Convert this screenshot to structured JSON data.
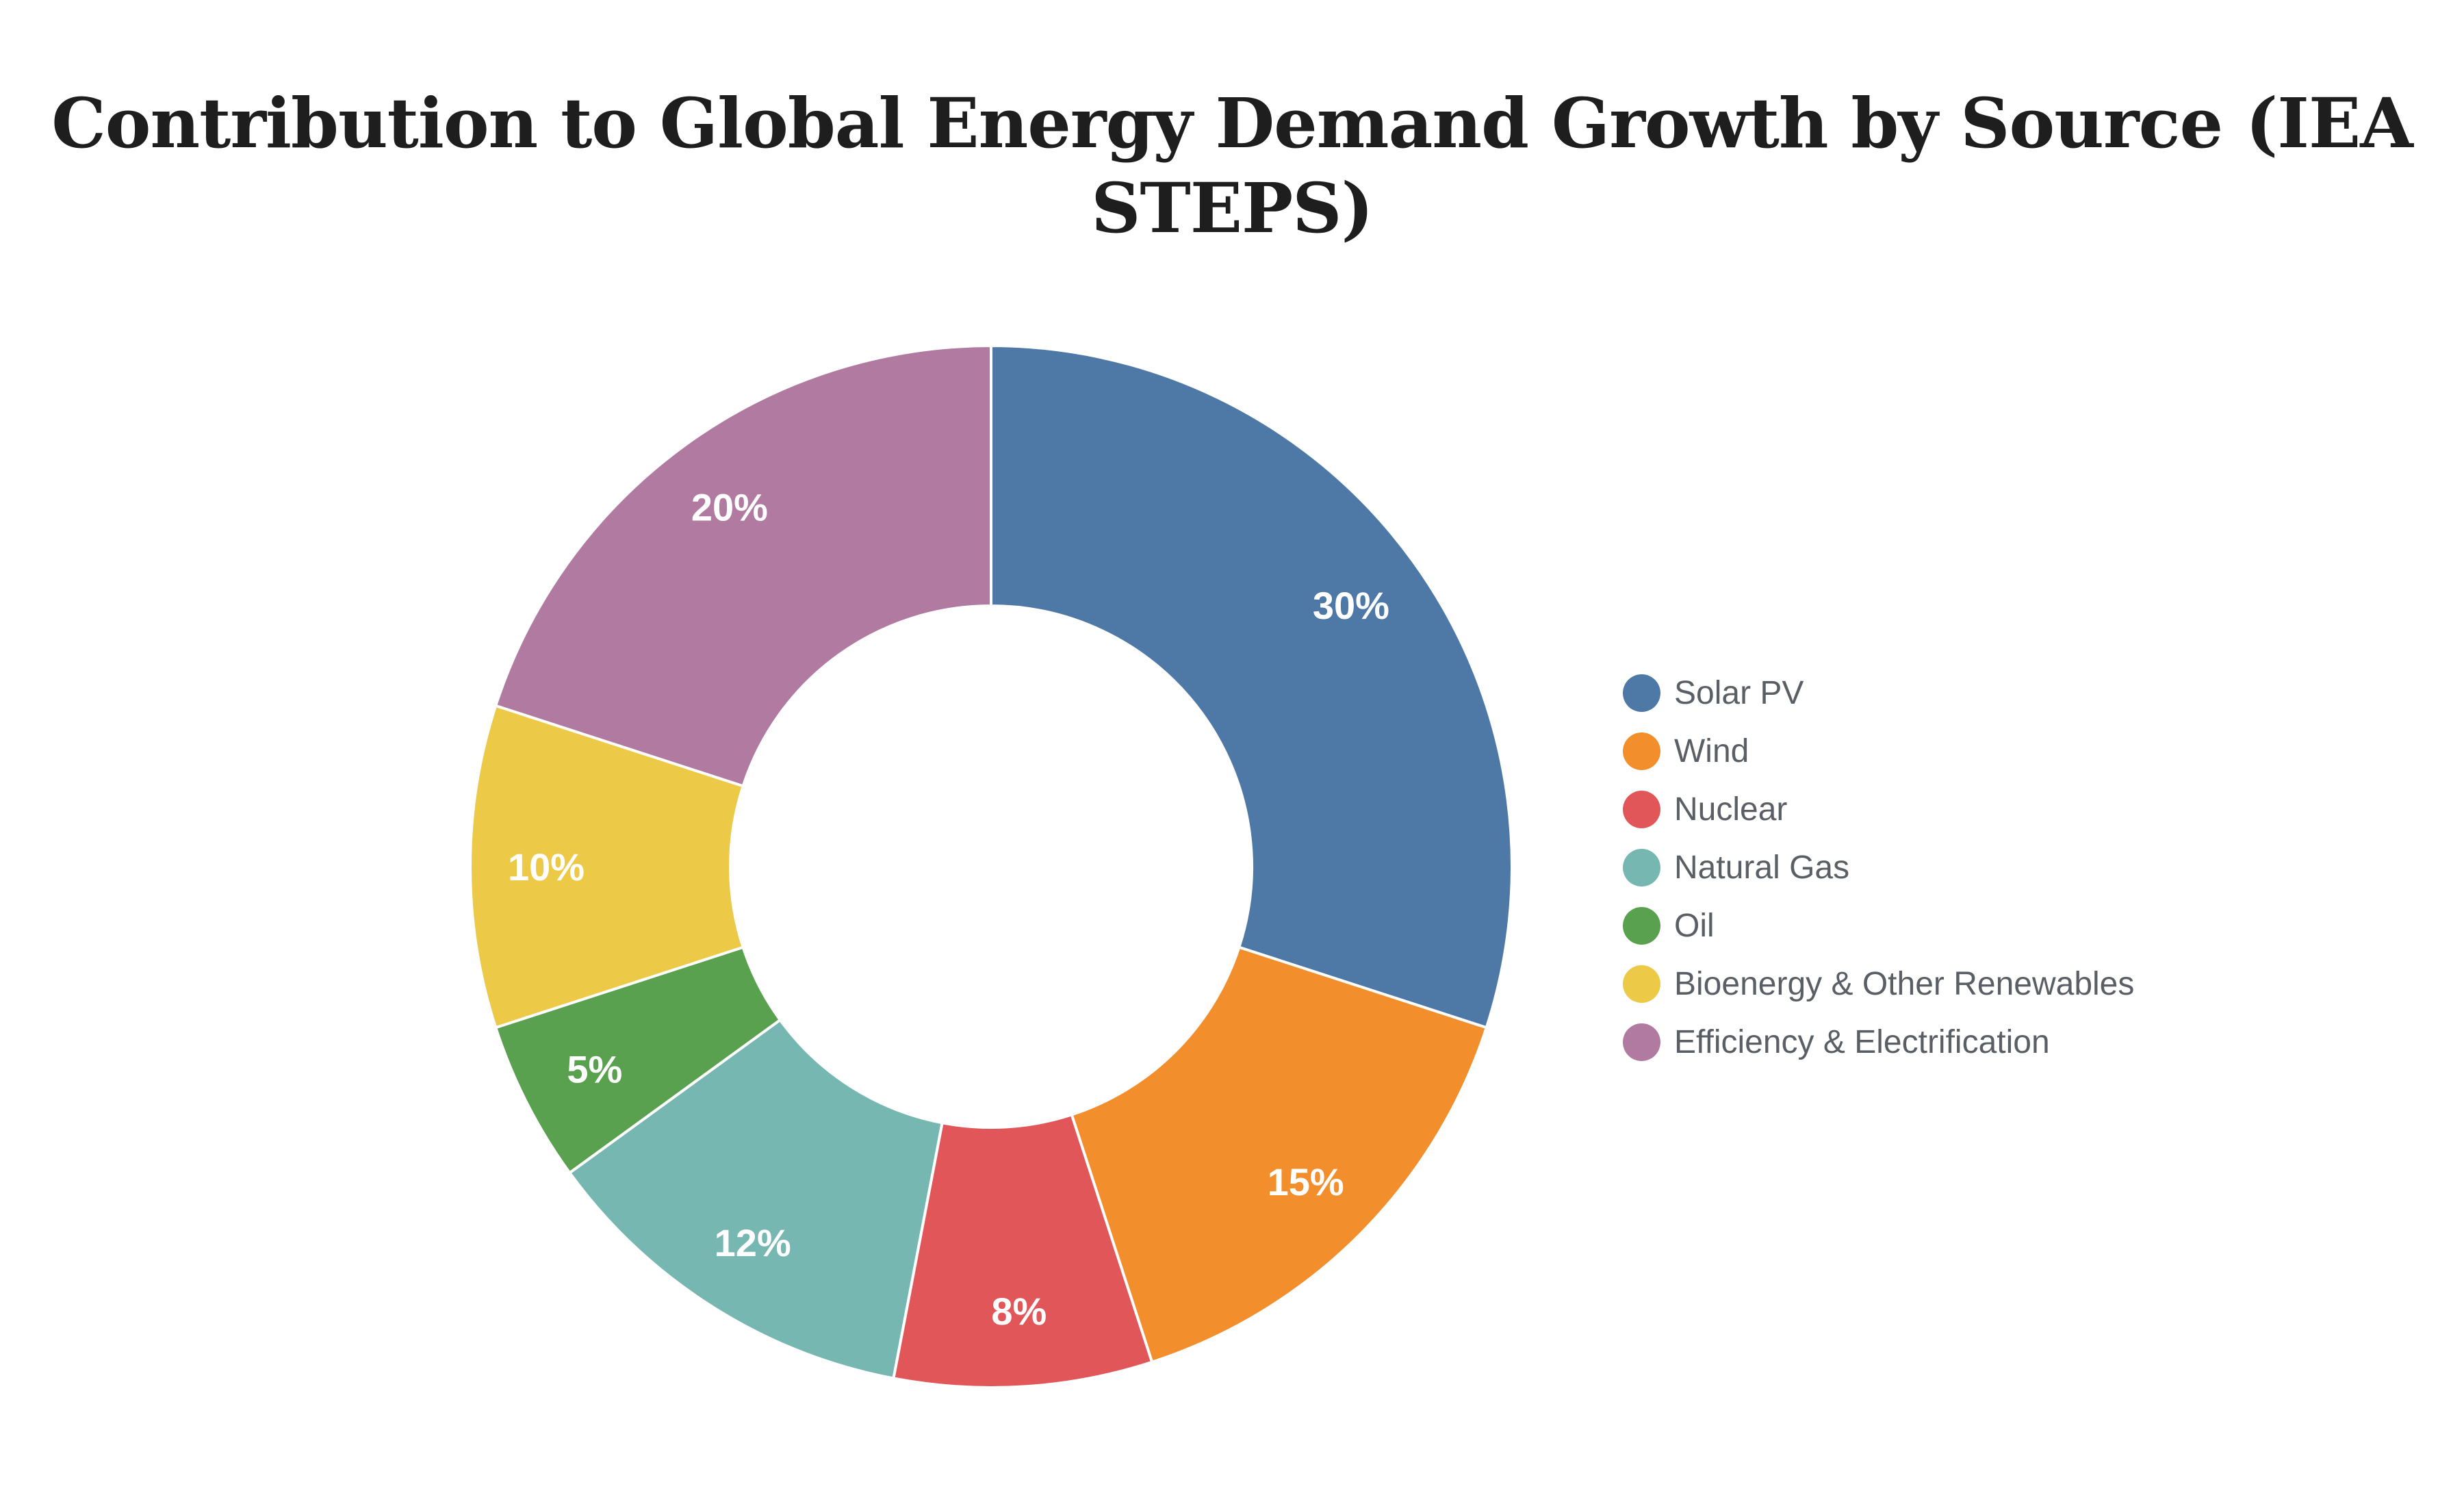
{
  "title": {
    "text": "Contribution to Global Energy Demand Growth by Source (IEA STEPS)",
    "lines": [
      "Contribution to Global Energy Demand Growth by Source (IEA",
      "STEPS)"
    ]
  },
  "chart_data": {
    "type": "pie",
    "variant": "donut",
    "hole_ratio": 0.5,
    "title": "Contribution to Global Energy Demand Growth by Source (IEA STEPS)",
    "categories": [
      "Solar PV",
      "Wind",
      "Nuclear",
      "Natural Gas",
      "Oil",
      "Bioenergy & Other Renewables",
      "Efficiency & Electrification"
    ],
    "values": [
      30,
      15,
      8,
      12,
      5,
      10,
      20
    ],
    "slice_labels": [
      "30%",
      "15%",
      "8%",
      "12%",
      "5%",
      "10%",
      "20%"
    ],
    "colors": [
      "#4E79A7",
      "#F28E2B",
      "#E15759",
      "#76B7B2",
      "#59A14F",
      "#EDC948",
      "#B07AA1"
    ],
    "start_angle_deg": 0,
    "direction": "clockwise",
    "slice_label_position": "inside",
    "slice_label_color": "#FFFFFF",
    "slice_border_color": "#FFFFFF",
    "legend_position": "right",
    "background_color": "#FFFFFF"
  },
  "legend": {
    "items": [
      {
        "label": "Solar PV",
        "color": "#4E79A7"
      },
      {
        "label": "Wind",
        "color": "#F28E2B"
      },
      {
        "label": "Nuclear",
        "color": "#E15759"
      },
      {
        "label": "Natural Gas",
        "color": "#76B7B2"
      },
      {
        "label": "Oil",
        "color": "#59A14F"
      },
      {
        "label": "Bioenergy & Other Renewables",
        "color": "#EDC948"
      },
      {
        "label": "Efficiency & Electrification",
        "color": "#B07AA1"
      }
    ],
    "text_color": "#5A5F66"
  }
}
